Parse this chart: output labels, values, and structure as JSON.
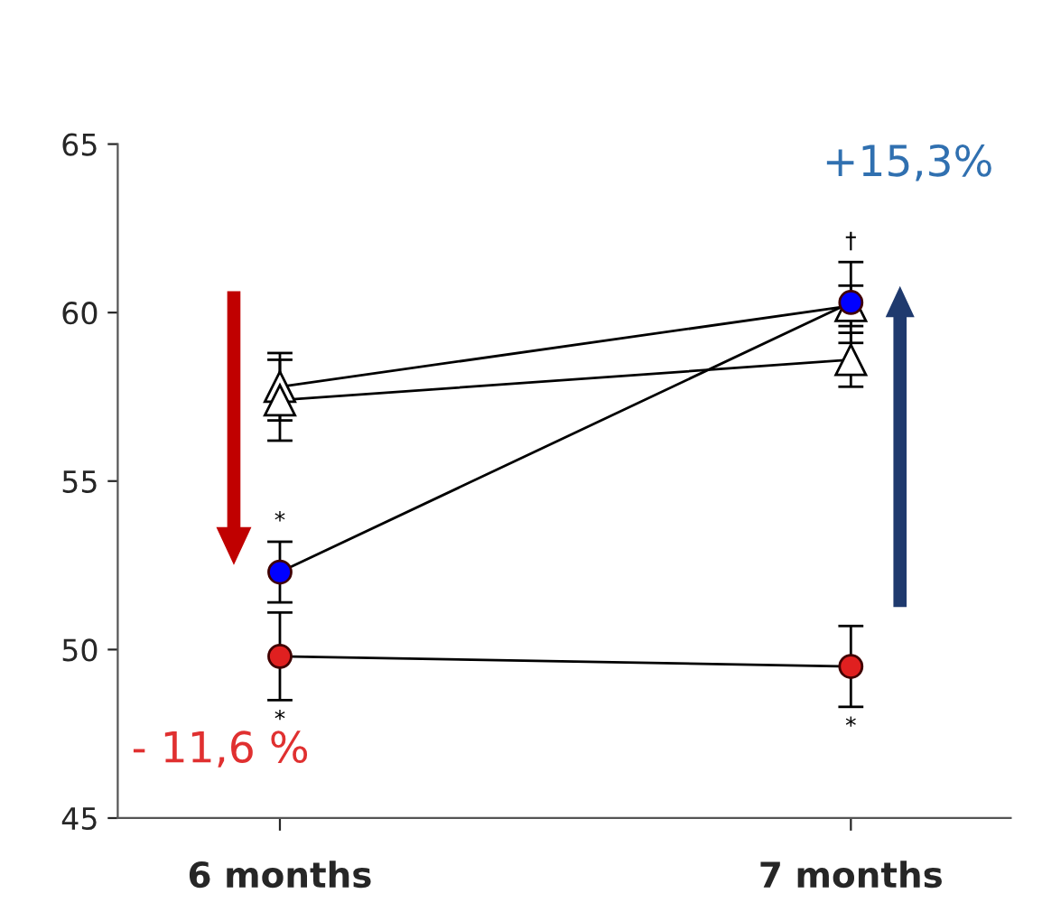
{
  "chart_data": {
    "type": "line",
    "categories": [
      "6 months",
      "7 months"
    ],
    "series": [
      {
        "color": "#000000",
        "marker": "triangle",
        "values": [
          57.8,
          60.2
        ],
        "errors": [
          1.0,
          0.6
        ]
      },
      {
        "color": "#000000",
        "marker": "triangle",
        "values": [
          57.4,
          58.6
        ],
        "errors": [
          1.2,
          0.8
        ]
      },
      {
        "color": "#0000ff",
        "marker": "circle",
        "values": [
          52.3,
          60.3
        ],
        "errors": [
          0.9,
          1.2
        ],
        "value_labels": [
          "*",
          "†"
        ]
      },
      {
        "color": "#e02020",
        "marker": "circle",
        "values": [
          49.8,
          49.5
        ],
        "errors": [
          1.3,
          1.2
        ],
        "value_labels": [
          "*",
          "*"
        ]
      }
    ],
    "ylim": [
      45,
      65
    ],
    "yticks": [
      45,
      50,
      55,
      60,
      65
    ],
    "grid": false,
    "legend": false,
    "annotations": [
      "- 11,6 %",
      "+15,3%"
    ]
  }
}
